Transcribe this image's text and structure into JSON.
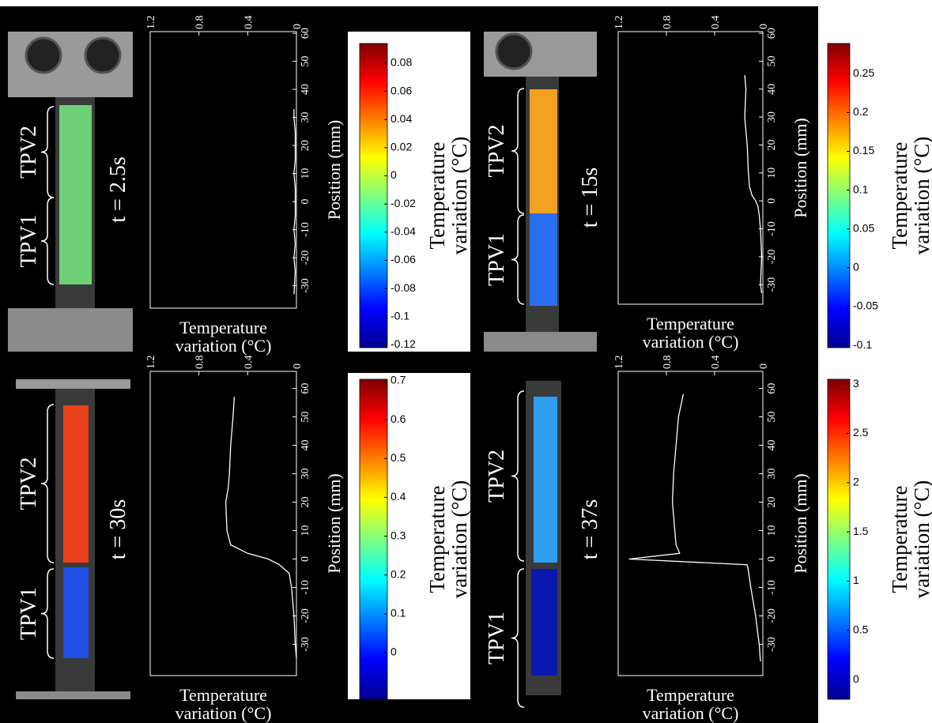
{
  "chart_data": [
    {
      "type": "line",
      "label": "t = 2.5s",
      "regions": [
        "TPV1",
        "TPV2"
      ],
      "xlabel": [
        "Temperature",
        "variation (°C)"
      ],
      "ylabel": "Position (mm)",
      "x": [
        -33,
        -25,
        -20,
        -15,
        -10,
        -5,
        0,
        5,
        10,
        15,
        20,
        25,
        30,
        33
      ],
      "values": [
        0.02,
        0.01,
        0.02,
        0.01,
        0.02,
        0.01,
        0.01,
        0.01,
        0.02,
        0.01,
        0.01,
        0.01,
        0.02,
        0.02
      ],
      "xlim": [
        -38,
        60.6
      ],
      "xticks": [
        -30,
        -20,
        -10,
        0,
        10,
        20,
        30,
        40,
        50,
        60
      ],
      "ylim": [
        1.2,
        0
      ],
      "yticks": [
        1.2,
        0.8,
        0.4,
        0
      ],
      "color": "#ffffff",
      "colorbar": {
        "clim": [
          -0.122,
          0.094
        ],
        "cticks": [
          -0.12,
          -0.1,
          -0.08,
          -0.06,
          -0.04,
          -0.02,
          0,
          0.02,
          0.04,
          0.06,
          0.08
        ],
        "label": [
          "Temperature",
          "variation (°C)"
        ]
      }
    },
    {
      "type": "line",
      "label": "t = 15s",
      "regions": [
        "TPV1",
        "TPV2"
      ],
      "xlabel": [
        "Temperature",
        "variation (°C)"
      ],
      "ylabel": "Position (mm)",
      "x": [
        -33,
        -30,
        -20,
        -10,
        -5,
        -2,
        0,
        2,
        5,
        10,
        20,
        30,
        40,
        45
      ],
      "values": [
        0.01,
        0.02,
        0.01,
        0.02,
        0.03,
        0.04,
        0.06,
        0.09,
        0.11,
        0.12,
        0.13,
        0.15,
        0.14,
        0.15
      ],
      "xlim": [
        -37,
        60.6
      ],
      "xticks": [
        -30,
        -20,
        -10,
        0,
        10,
        20,
        30,
        40,
        50,
        60
      ],
      "ylim": [
        1.2,
        0
      ],
      "yticks": [
        1.2,
        0.8,
        0.4,
        0
      ],
      "color": "#ffffff",
      "colorbar": {
        "clim": [
          -0.103,
          0.289
        ],
        "cticks": [
          -0.1,
          -0.05,
          0,
          0.05,
          0.1,
          0.15,
          0.2,
          0.25
        ],
        "label": [
          "Temperature",
          "variation (°C)"
        ]
      }
    },
    {
      "type": "line",
      "label": "t = 30s",
      "regions": [
        "TPV1",
        "TPV2"
      ],
      "xlabel": [
        "Temperature",
        "variation (°C)"
      ],
      "ylabel": "Position (mm)",
      "x": [
        -35,
        -30,
        -20,
        -10,
        -5,
        -2,
        0,
        2,
        5,
        10,
        20,
        25,
        30,
        40,
        50,
        57
      ],
      "values": [
        0,
        0.01,
        0.02,
        0.04,
        0.06,
        0.14,
        0.23,
        0.4,
        0.54,
        0.57,
        0.58,
        0.56,
        0.55,
        0.54,
        0.52,
        0.51
      ],
      "xlim": [
        -41,
        66
      ],
      "xticks": [
        -30,
        -20,
        -10,
        0,
        10,
        20,
        30,
        40,
        50,
        60
      ],
      "ylim": [
        1.2,
        0
      ],
      "yticks": [
        1.2,
        0.8,
        0.4,
        0
      ],
      "color": "#ffffff",
      "colorbar": {
        "clim": [
          -0.12,
          0.704
        ],
        "cticks": [
          0,
          0.1,
          0.2,
          0.3,
          0.4,
          0.5,
          0.6,
          0.7
        ],
        "label": [
          "Temperature",
          "variation (°C)"
        ]
      }
    },
    {
      "type": "line",
      "label": "t = 37s",
      "regions": [
        "TPV1",
        "TPV2"
      ],
      "xlabel": [
        "Temperature",
        "variation (°C)"
      ],
      "ylabel": "Position (mm)",
      "x": [
        -36,
        -30,
        -20,
        -10,
        -4,
        -2,
        0,
        2,
        5,
        10,
        20,
        30,
        40,
        50,
        58
      ],
      "values": [
        0.02,
        0.03,
        0.06,
        0.1,
        0.12,
        0.13,
        1.11,
        0.69,
        0.72,
        0.73,
        0.75,
        0.74,
        0.72,
        0.7,
        0.66
      ],
      "xlim": [
        -41,
        66
      ],
      "xticks": [
        -30,
        -20,
        -10,
        0,
        10,
        20,
        30,
        40,
        50,
        60
      ],
      "ylim": [
        1.2,
        0
      ],
      "yticks": [
        1.2,
        0.8,
        0.4,
        0
      ],
      "color": "#ffffff",
      "colorbar": {
        "clim": [
          -0.2,
          3.05
        ],
        "cticks": [
          0,
          0.5,
          1,
          1.5,
          2,
          2.5,
          3
        ],
        "label": [
          "Temperature",
          "variation (°C)"
        ]
      }
    }
  ]
}
